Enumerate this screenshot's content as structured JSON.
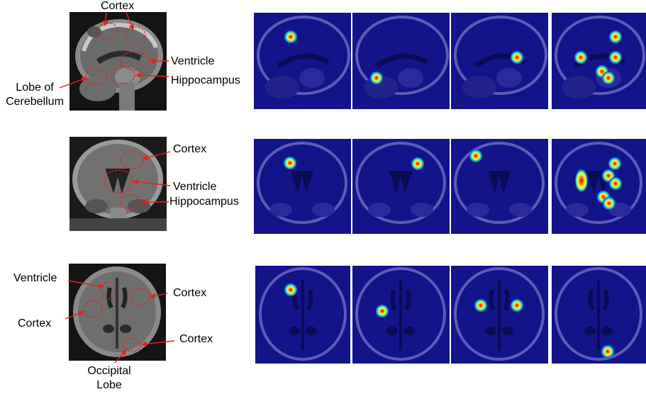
{
  "labels": {
    "row1": {
      "cortex": "Cortex",
      "ventricle": "Ventricle",
      "hippocampus": "Hippocampus",
      "lobe_line1": "Lobe of",
      "lobe_line2": "Cerebellum"
    },
    "row2": {
      "cortex": "Cortex",
      "ventricle": "Ventricle",
      "hippocampus": "Hippocampus"
    },
    "row3": {
      "ventricle": "Ventricle",
      "cortex_left": "Cortex",
      "cortex_right": "Cortex",
      "cortex_bottom": "Cortex",
      "occipital_line1": "Occipital",
      "occipital_line2": "Lobe"
    }
  },
  "colors": {
    "annotation": "#e8201a",
    "overlay_blue": "#13138a",
    "hotspot_core": "#c8000a"
  },
  "views": [
    "sagittal",
    "coronal",
    "axial"
  ],
  "heatmaps_per_row": 4,
  "hotspots_per_panel": {
    "sagittal": [
      1,
      1,
      1,
      5
    ],
    "coronal": [
      1,
      1,
      1,
      6
    ],
    "axial": [
      1,
      1,
      2,
      1
    ]
  }
}
